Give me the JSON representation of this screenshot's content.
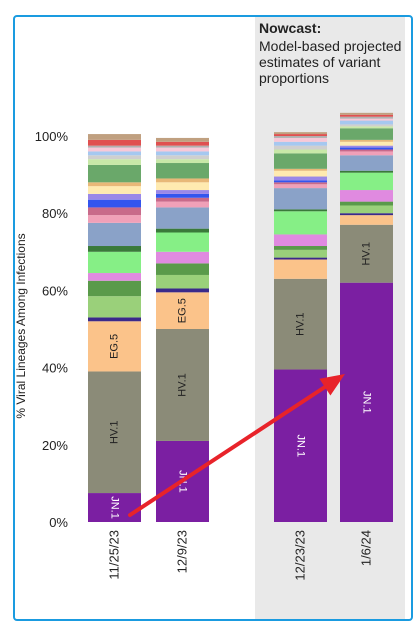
{
  "chart_data": {
    "type": "bar",
    "stacked": true,
    "ylabel": "% Viral Lineages Among Infections",
    "ylim": [
      0,
      100
    ],
    "yticks": [
      "0%",
      "20%",
      "40%",
      "60%",
      "80%",
      "100%"
    ],
    "categories": [
      "11/25/23",
      "12/9/23",
      "12/23/23",
      "1/6/24"
    ],
    "nowcast": {
      "title": "Nowcast:",
      "description": "Model-based projected estimates of variant proportions",
      "categories": [
        "12/23/23",
        "1/6/24"
      ]
    },
    "series": [
      {
        "name": "JN.1",
        "color": "#7b1fa2",
        "values": [
          7.5,
          21,
          39.5,
          62
        ]
      },
      {
        "name": "HV.1",
        "color": "#8b8b78",
        "values": [
          31.5,
          29,
          23.5,
          15
        ]
      },
      {
        "name": "EG.5",
        "color": "#fbc38a",
        "values": [
          13,
          9.5,
          5,
          2.5
        ]
      },
      {
        "name": "",
        "color": "#3b2a8a",
        "values": [
          1,
          1,
          0.5,
          0.5
        ]
      },
      {
        "name": "",
        "color": "#9ad07a",
        "values": [
          5.5,
          3.5,
          2,
          2
        ]
      },
      {
        "name": "",
        "color": "#5a9a4a",
        "values": [
          4,
          3,
          1,
          1
        ]
      },
      {
        "name": "",
        "color": "#e08ae0",
        "values": [
          2,
          3,
          3,
          3
        ]
      },
      {
        "name": "",
        "color": "#86ef86",
        "values": [
          5.5,
          5,
          6,
          4.5
        ]
      },
      {
        "name": "",
        "color": "#3a7a3a",
        "values": [
          1.5,
          1,
          0.5,
          0.5
        ]
      },
      {
        "name": "",
        "color": "#8aa2c8",
        "values": [
          6,
          5.5,
          5.5,
          4
        ]
      },
      {
        "name": "",
        "color": "#f0a0b8",
        "values": [
          2,
          1.5,
          1,
          1
        ]
      },
      {
        "name": "",
        "color": "#c86a8a",
        "values": [
          2,
          1,
          0.5,
          0.5
        ]
      },
      {
        "name": "",
        "color": "#3355ee",
        "values": [
          2,
          1,
          0.5,
          0.5
        ]
      },
      {
        "name": "",
        "color": "#9a88e8",
        "values": [
          1.5,
          1,
          1,
          0.5
        ]
      },
      {
        "name": "",
        "color": "#ffeab0",
        "values": [
          2,
          2,
          1.5,
          1
        ]
      },
      {
        "name": "",
        "color": "#e8b878",
        "values": [
          1,
          1,
          0.5,
          0.5
        ]
      },
      {
        "name": "",
        "color": "#6aa86a",
        "values": [
          4.5,
          4,
          4,
          3
        ]
      },
      {
        "name": "",
        "color": "#c8e8a8",
        "values": [
          1.5,
          1,
          1,
          0.5
        ]
      },
      {
        "name": "",
        "color": "#cfcfcf",
        "values": [
          1,
          1,
          1,
          0.5
        ]
      },
      {
        "name": "",
        "color": "#a6c8f0",
        "values": [
          1,
          1,
          1,
          1
        ]
      },
      {
        "name": "",
        "color": "#f8c8d8",
        "values": [
          1,
          1,
          1,
          0.5
        ]
      },
      {
        "name": "",
        "color": "#b0b0b0",
        "values": [
          0.5,
          0.5,
          0.5,
          0.5
        ]
      },
      {
        "name": "",
        "color": "#e05050",
        "values": [
          1.5,
          1,
          0.5,
          0.5
        ]
      },
      {
        "name": "",
        "color": "#c0a080",
        "values": [
          1.5,
          1,
          0.5,
          0.5
        ]
      }
    ],
    "annotation": {
      "type": "arrow",
      "color": "#e8232a",
      "from": "JN.1 11/25/23",
      "to": "JN.1 1/6/24"
    }
  }
}
